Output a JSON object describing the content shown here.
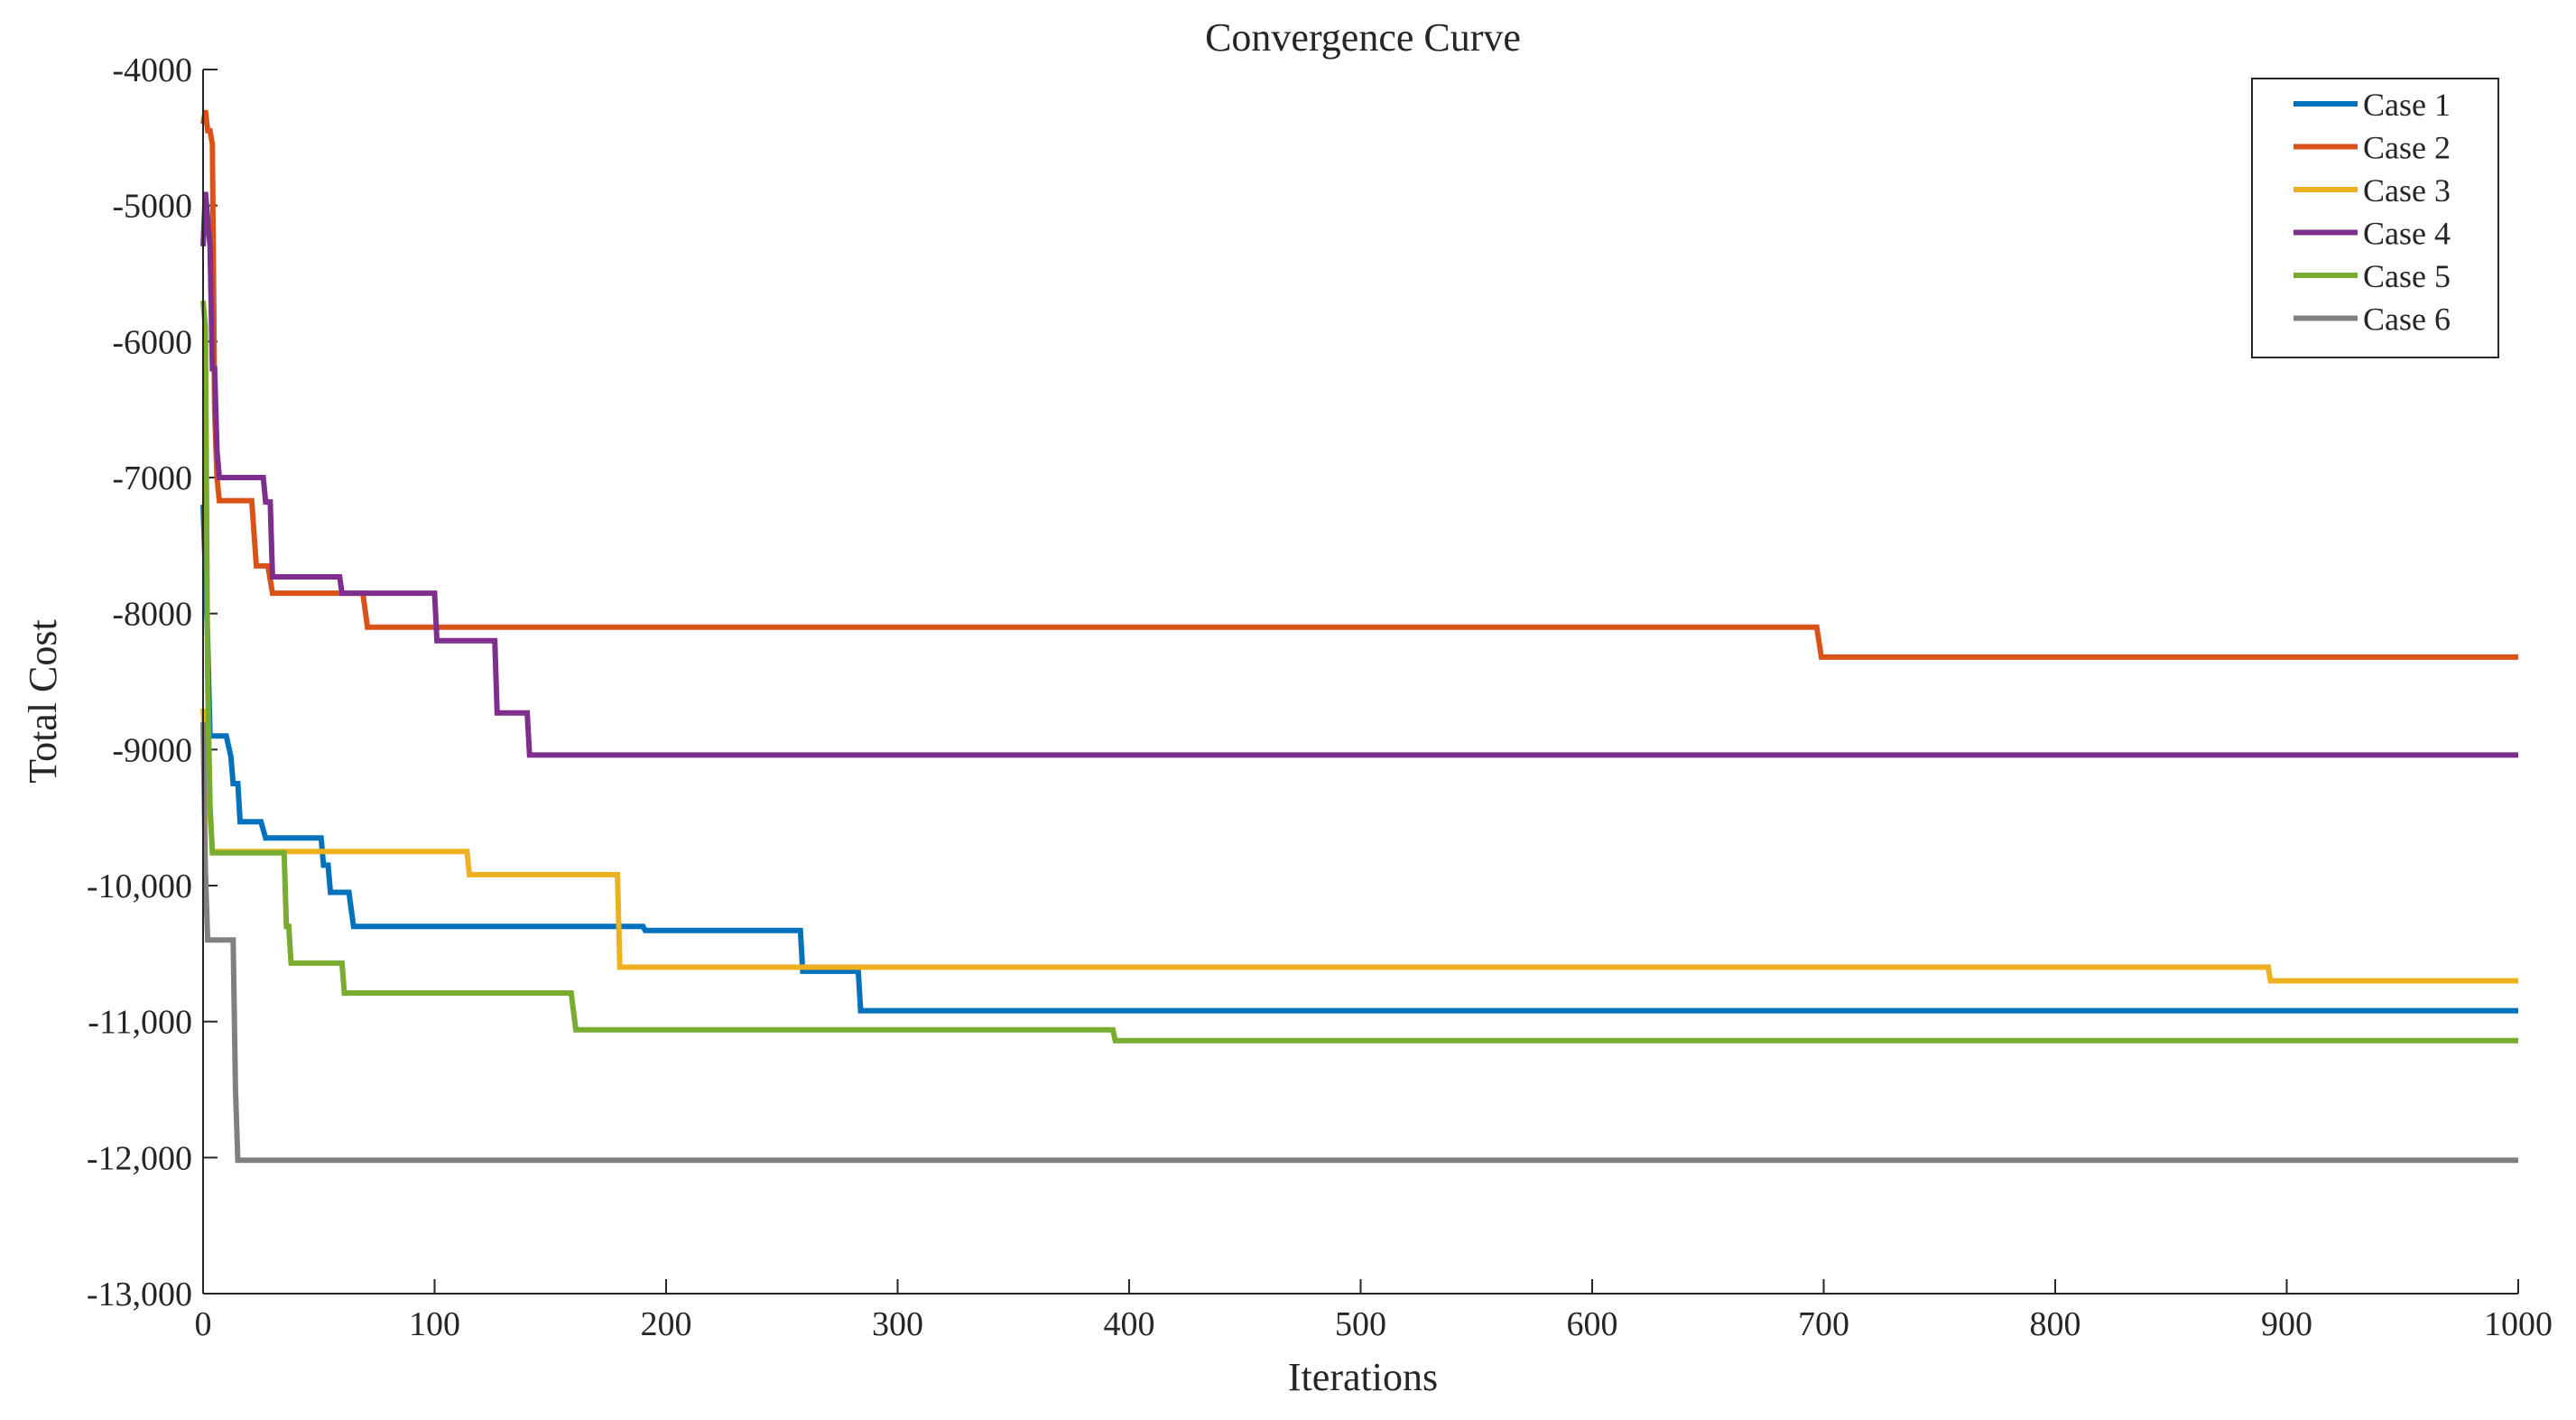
{
  "chart_data": {
    "type": "line",
    "title": "Convergence Curve",
    "xlabel": "Iterations",
    "ylabel": "Total Cost",
    "xlim": [
      0,
      1000
    ],
    "ylim": [
      -13000,
      -4000
    ],
    "xticks": [
      0,
      100,
      200,
      300,
      400,
      500,
      600,
      700,
      800,
      900,
      1000
    ],
    "xtick_labels": [
      "0",
      "100",
      "200",
      "300",
      "400",
      "500",
      "600",
      "700",
      "800",
      "900",
      "1000"
    ],
    "yticks": [
      -4000,
      -5000,
      -6000,
      -7000,
      -8000,
      -9000,
      -10000,
      -11000,
      -12000,
      -13000
    ],
    "ytick_labels": [
      "-4000",
      "-5000",
      "-6000",
      "-7000",
      "-8000",
      "-9000",
      "-10,000",
      "-11,000",
      "-12,000",
      "-13,000"
    ],
    "grid": false,
    "legend_position": "top-right",
    "series": [
      {
        "name": "Case 1",
        "color": "#0072BD",
        "points": [
          [
            0,
            -7200
          ],
          [
            2,
            -8200
          ],
          [
            3,
            -8900
          ],
          [
            10,
            -8900
          ],
          [
            12,
            -9050
          ],
          [
            13,
            -9250
          ],
          [
            15,
            -9250
          ],
          [
            16,
            -9530
          ],
          [
            25,
            -9530
          ],
          [
            27,
            -9650
          ],
          [
            51,
            -9650
          ],
          [
            52,
            -9850
          ],
          [
            54,
            -9850
          ],
          [
            55,
            -10050
          ],
          [
            63,
            -10050
          ],
          [
            65,
            -10300
          ],
          [
            190,
            -10300
          ],
          [
            191,
            -10330
          ],
          [
            258,
            -10330
          ],
          [
            259,
            -10630
          ],
          [
            283,
            -10630
          ],
          [
            284,
            -10920
          ],
          [
            1000,
            -10920
          ]
        ]
      },
      {
        "name": "Case 2",
        "color": "#D95319",
        "points": [
          [
            0,
            -4400
          ],
          [
            1,
            -4300
          ],
          [
            2,
            -4450
          ],
          [
            3,
            -4450
          ],
          [
            4,
            -4550
          ],
          [
            5,
            -6500
          ],
          [
            6,
            -7000
          ],
          [
            7,
            -7170
          ],
          [
            21,
            -7170
          ],
          [
            23,
            -7650
          ],
          [
            28,
            -7650
          ],
          [
            30,
            -7850
          ],
          [
            69,
            -7850
          ],
          [
            71,
            -8100
          ],
          [
            697,
            -8100
          ],
          [
            699,
            -8320
          ],
          [
            1000,
            -8320
          ]
        ]
      },
      {
        "name": "Case 3",
        "color": "#EDB120",
        "points": [
          [
            0,
            -8700
          ],
          [
            2,
            -9200
          ],
          [
            4,
            -9750
          ],
          [
            114,
            -9750
          ],
          [
            115,
            -9920
          ],
          [
            179,
            -9920
          ],
          [
            180,
            -10600
          ],
          [
            892,
            -10600
          ],
          [
            893,
            -10700
          ],
          [
            1000,
            -10700
          ]
        ]
      },
      {
        "name": "Case 4",
        "color": "#7E2F8E",
        "points": [
          [
            0,
            -5300
          ],
          [
            1,
            -4900
          ],
          [
            3,
            -5300
          ],
          [
            4,
            -6200
          ],
          [
            5,
            -6200
          ],
          [
            6,
            -6800
          ],
          [
            7,
            -7000
          ],
          [
            26,
            -7000
          ],
          [
            27,
            -7180
          ],
          [
            29,
            -7180
          ],
          [
            30,
            -7730
          ],
          [
            59,
            -7730
          ],
          [
            60,
            -7850
          ],
          [
            100,
            -7850
          ],
          [
            101,
            -8200
          ],
          [
            126,
            -8200
          ],
          [
            127,
            -8730
          ],
          [
            140,
            -8730
          ],
          [
            141,
            -9040
          ],
          [
            1000,
            -9040
          ]
        ]
      },
      {
        "name": "Case 5",
        "color": "#77AC30",
        "points": [
          [
            0,
            -5700
          ],
          [
            1,
            -5900
          ],
          [
            2,
            -8500
          ],
          [
            3,
            -9400
          ],
          [
            4,
            -9760
          ],
          [
            35,
            -9760
          ],
          [
            36,
            -10300
          ],
          [
            37,
            -10300
          ],
          [
            38,
            -10570
          ],
          [
            60,
            -10570
          ],
          [
            61,
            -10790
          ],
          [
            159,
            -10790
          ],
          [
            161,
            -11060
          ],
          [
            393,
            -11060
          ],
          [
            394,
            -11140
          ],
          [
            1000,
            -11140
          ]
        ]
      },
      {
        "name": "Case 6",
        "color": "#808080",
        "points": [
          [
            0,
            -8800
          ],
          [
            1,
            -9900
          ],
          [
            2,
            -10400
          ],
          [
            13,
            -10400
          ],
          [
            14,
            -11500
          ],
          [
            15,
            -12020
          ],
          [
            1000,
            -12020
          ]
        ]
      }
    ]
  }
}
